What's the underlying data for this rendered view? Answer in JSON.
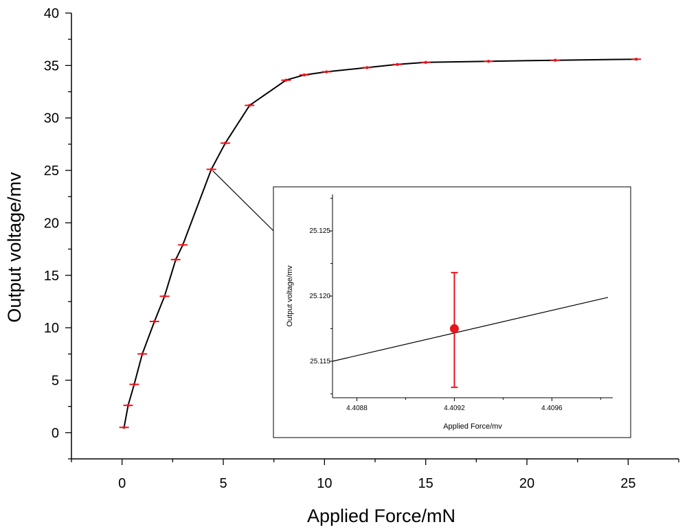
{
  "chart_data": [
    {
      "type": "line",
      "xlabel": "Applied Force/mN",
      "ylabel": "Output voltage/mv",
      "xlim": [
        -2.5,
        27.5
      ],
      "ylim": [
        -2.5,
        40
      ],
      "xticks": [
        0,
        5,
        10,
        15,
        20,
        25
      ],
      "yticks": [
        0,
        5,
        10,
        15,
        20,
        25,
        30,
        35,
        40
      ],
      "grid": false,
      "series": [
        {
          "color": "#000000",
          "marker_color": "#e8141c",
          "error_bars": true,
          "points": [
            [
              0.1,
              0.5
            ],
            [
              0.3,
              2.6
            ],
            [
              0.6,
              4.6
            ],
            [
              1.0,
              7.5
            ],
            [
              1.6,
              10.6
            ],
            [
              2.1,
              13.0
            ],
            [
              2.65,
              16.5
            ],
            [
              3.0,
              17.9
            ],
            [
              4.41,
              25.1
            ],
            [
              5.1,
              27.6
            ],
            [
              6.3,
              31.2
            ],
            [
              8.1,
              33.6
            ],
            [
              9.0,
              34.1
            ],
            [
              10.1,
              34.4
            ],
            [
              12.1,
              34.8
            ],
            [
              13.6,
              35.1
            ],
            [
              15.0,
              35.3
            ],
            [
              18.1,
              35.4
            ],
            [
              21.4,
              35.5
            ],
            [
              25.4,
              35.6
            ]
          ]
        }
      ]
    },
    {
      "type": "line",
      "xlabel": "Applied Force/mv",
      "ylabel": "Output voltage/mv",
      "xlim": [
        4.4087,
        4.40985
      ],
      "ylim": [
        25.1122,
        25.1278
      ],
      "xticks": [
        4.4088,
        4.4092,
        4.4096
      ],
      "yticks": [
        25.115,
        25.12,
        25.125
      ],
      "grid": false,
      "line": [
        [
          4.4087,
          25.115
        ],
        [
          4.40983,
          25.1199
        ]
      ],
      "point": {
        "x": 4.4092,
        "y": 25.1175,
        "err_low": 25.113,
        "err_high": 25.1218
      },
      "line_color": "#000000",
      "point_color": "#e8141c"
    }
  ]
}
